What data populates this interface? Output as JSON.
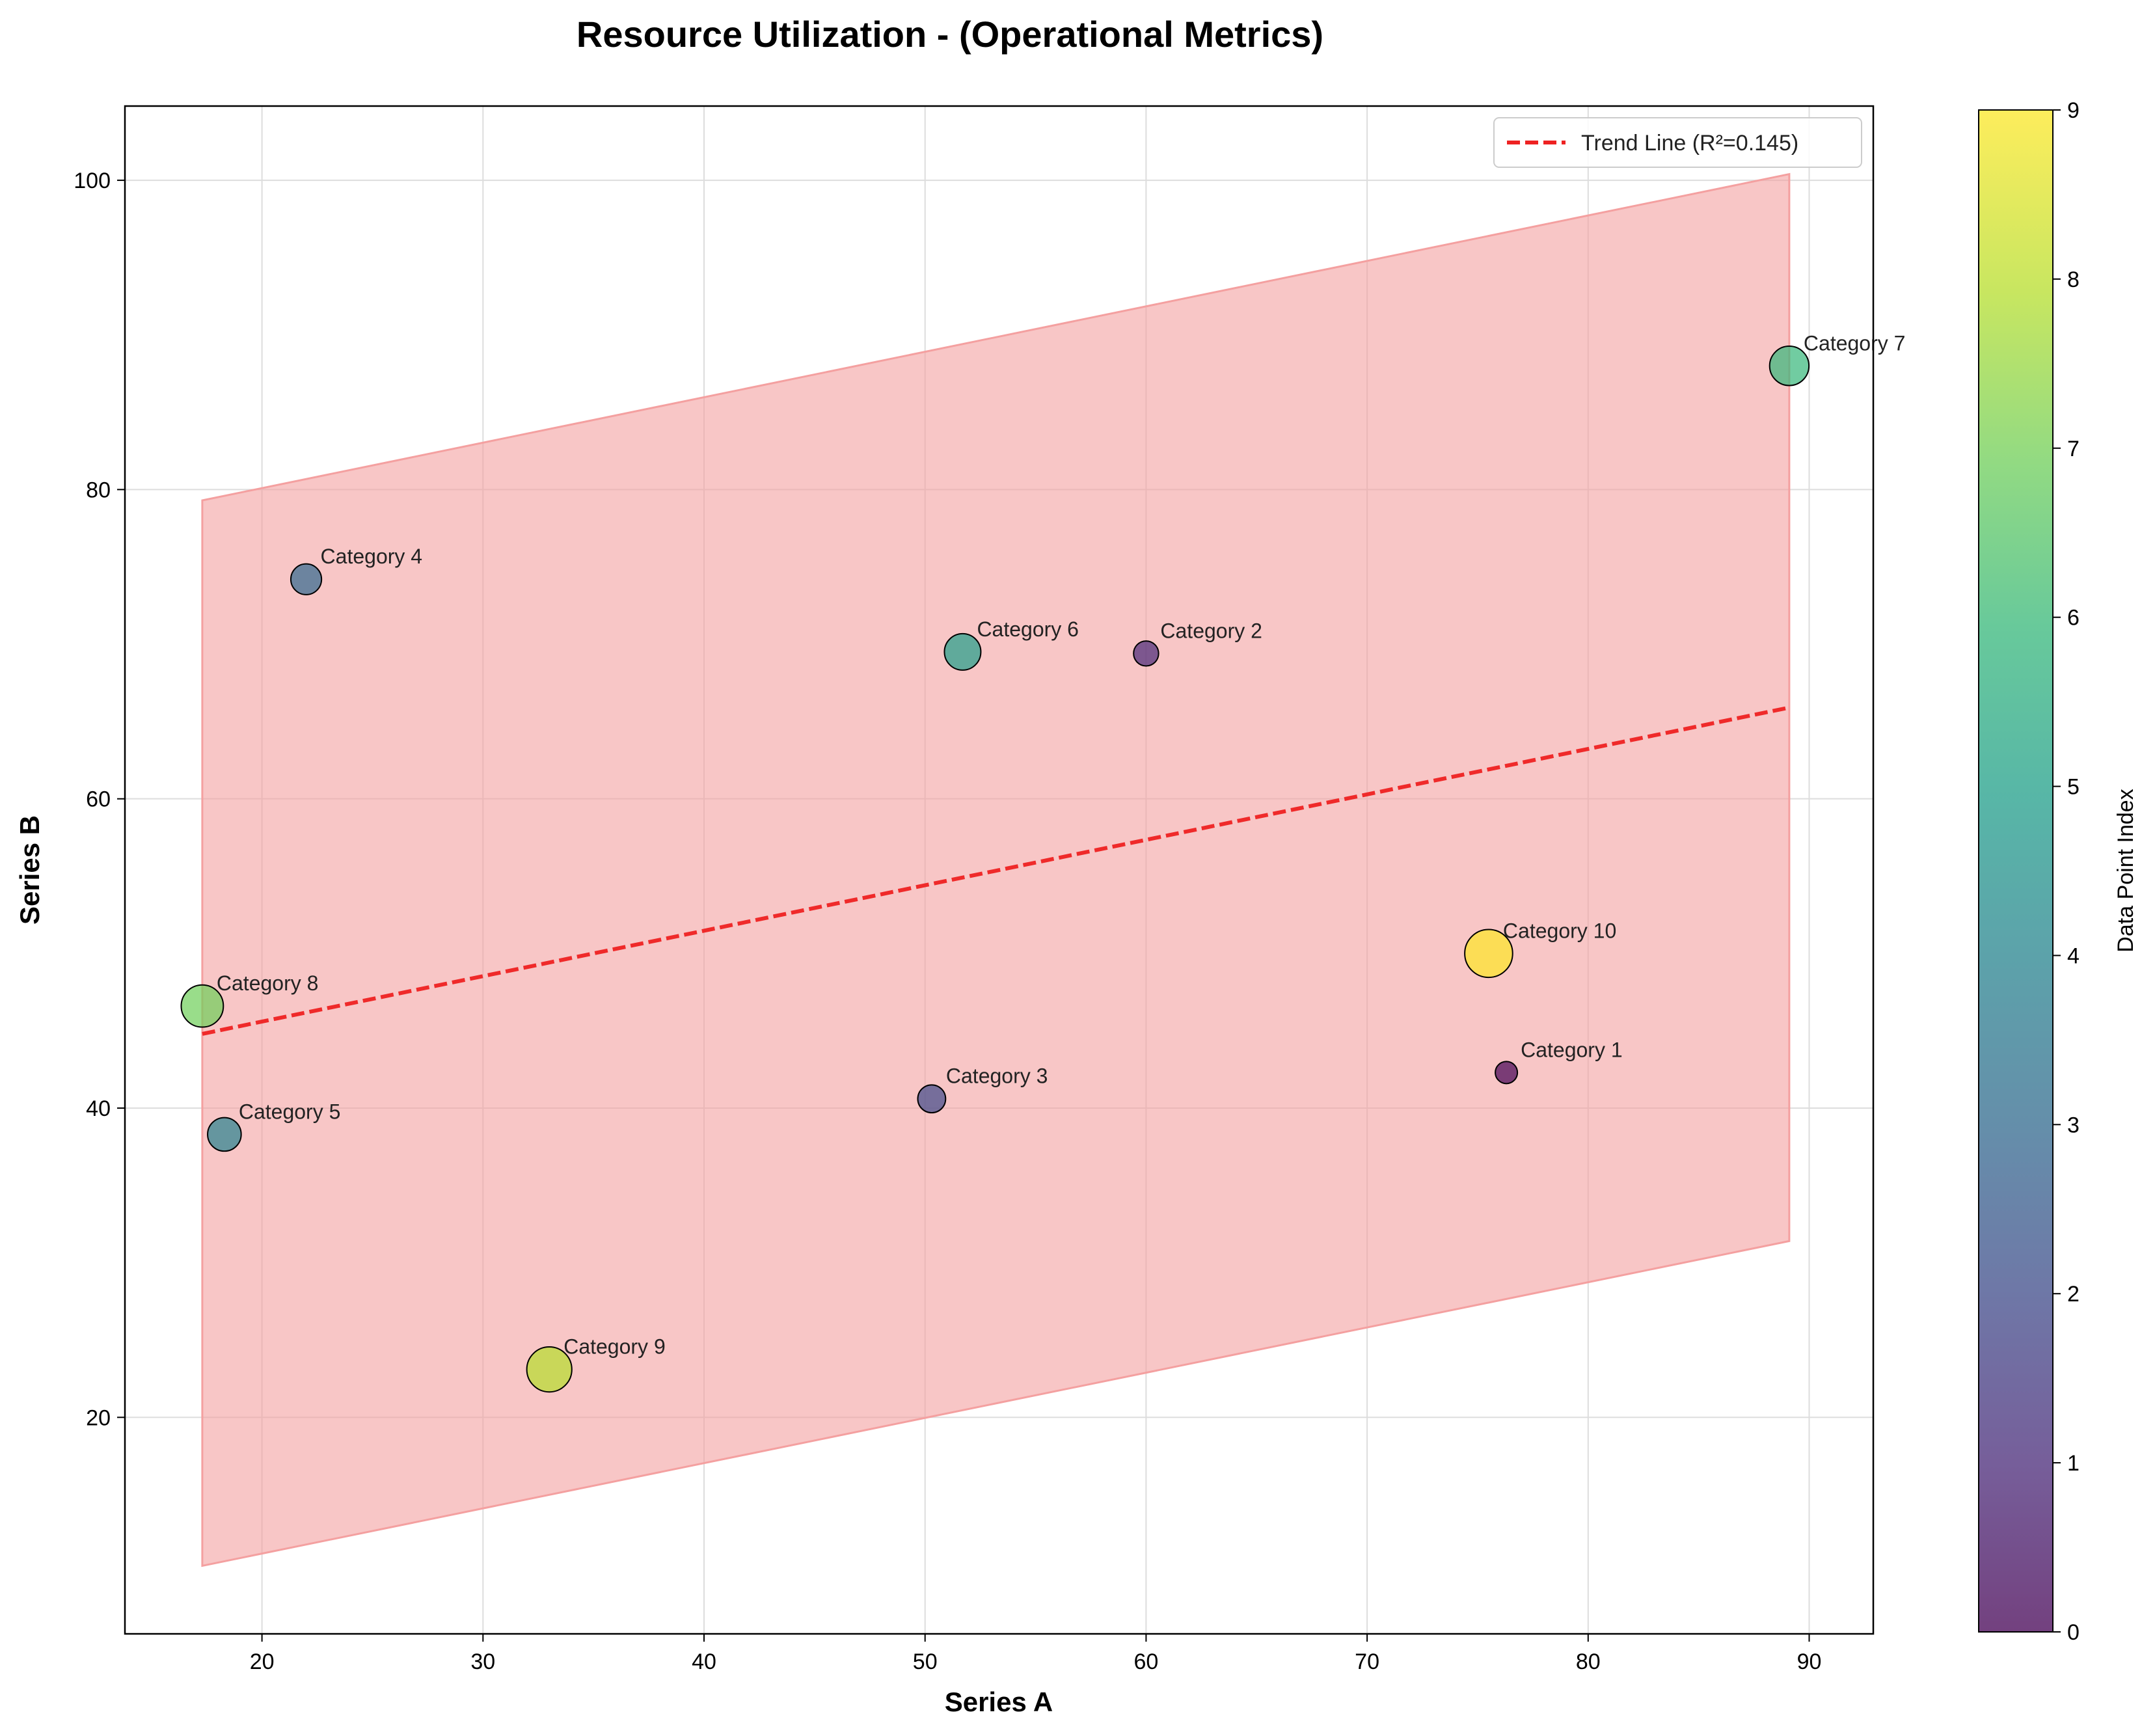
{
  "chart_data": {
    "type": "scatter",
    "title": "Resource Utilization - (Operational Metrics)",
    "xlabel": "Series A",
    "ylabel": "Series B",
    "xlim": [
      13.8,
      92.9
    ],
    "ylim": [
      6.0,
      104.8
    ],
    "xticks": [
      20,
      30,
      40,
      50,
      60,
      70,
      80,
      90
    ],
    "yticks": [
      20,
      40,
      60,
      80,
      100
    ],
    "grid": true,
    "legend_position": "top-right",
    "points": [
      {
        "label": "Category 1",
        "x": 76.3,
        "y": 42.3,
        "color_index": 0,
        "size": 1.0
      },
      {
        "label": "Category 2",
        "x": 60.0,
        "y": 69.4,
        "color_index": 1,
        "size": 1.2
      },
      {
        "label": "Category 3",
        "x": 50.3,
        "y": 40.6,
        "color_index": 2,
        "size": 1.4
      },
      {
        "label": "Category 4",
        "x": 22.0,
        "y": 74.2,
        "color_index": 3,
        "size": 1.6
      },
      {
        "label": "Category 5",
        "x": 18.3,
        "y": 38.3,
        "color_index": 4,
        "size": 1.8
      },
      {
        "label": "Category 6",
        "x": 51.7,
        "y": 69.5,
        "color_index": 5,
        "size": 2.0
      },
      {
        "label": "Category 7",
        "x": 89.1,
        "y": 88.0,
        "color_index": 6,
        "size": 2.2
      },
      {
        "label": "Category 8",
        "x": 17.3,
        "y": 46.6,
        "color_index": 7,
        "size": 2.4
      },
      {
        "label": "Category 9",
        "x": 33.0,
        "y": 23.1,
        "color_index": 8,
        "size": 2.6
      },
      {
        "label": "Category 10",
        "x": 75.5,
        "y": 50.0,
        "color_index": 9,
        "size": 2.8
      }
    ],
    "trend_line": {
      "label": "Trend Line (R²=0.145)",
      "x_start": 17.3,
      "y_start": 44.8,
      "x_end": 89.1,
      "y_end": 65.9,
      "color": "#ee2222"
    },
    "confidence_band": {
      "x_start": 17.3,
      "upper_start": 79.3,
      "lower_start": 10.4,
      "x_end": 89.1,
      "upper_end": 100.4,
      "lower_end": 31.4,
      "color": "#f4a0a0"
    },
    "colorbar": {
      "label": "Data Point Index",
      "min": 0,
      "max": 9,
      "ticks": [
        0,
        1,
        2,
        3,
        4,
        5,
        6,
        7,
        8,
        9
      ],
      "colormap": "viridis"
    }
  }
}
